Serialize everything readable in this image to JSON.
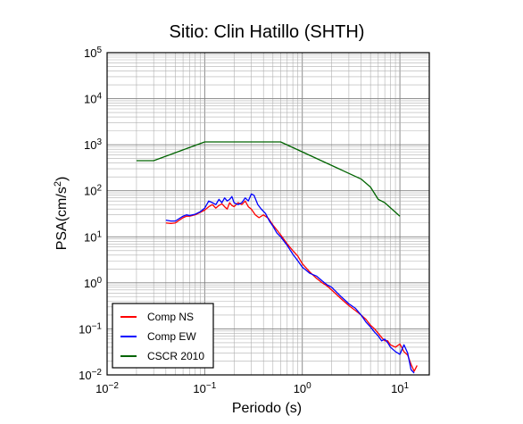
{
  "chart_data": {
    "type": "line",
    "title": "Sitio: Clin Hatillo (SHTH)",
    "xlabel": "Periodo (s)",
    "ylabel_main": "PSA(cm/s",
    "ylabel_sup": "2",
    "ylabel_tail": ")",
    "x_scale": "log",
    "y_scale": "log",
    "xlim": [
      0.01,
      20
    ],
    "ylim": [
      0.01,
      100000
    ],
    "grid": true,
    "legend_position": "bottom-left",
    "x_ticks": [
      {
        "base": "10",
        "exp": "−2",
        "value": 0.01
      },
      {
        "base": "10",
        "exp": "−1",
        "value": 0.1
      },
      {
        "base": "10",
        "exp": "0",
        "value": 1
      },
      {
        "base": "10",
        "exp": "1",
        "value": 10
      }
    ],
    "y_ticks": [
      {
        "base": "10",
        "exp": "−2",
        "value": 0.01
      },
      {
        "base": "10",
        "exp": "−1",
        "value": 0.1
      },
      {
        "base": "10",
        "exp": "0",
        "value": 1
      },
      {
        "base": "10",
        "exp": "1",
        "value": 10
      },
      {
        "base": "10",
        "exp": "2",
        "value": 100
      },
      {
        "base": "10",
        "exp": "3",
        "value": 1000
      },
      {
        "base": "10",
        "exp": "4",
        "value": 10000
      },
      {
        "base": "10",
        "exp": "5",
        "value": 100000
      }
    ],
    "series": [
      {
        "name": "Comp NS",
        "color": "#ff0000",
        "x": [
          0.04,
          0.045,
          0.05,
          0.055,
          0.06,
          0.065,
          0.07,
          0.08,
          0.09,
          0.1,
          0.11,
          0.12,
          0.13,
          0.14,
          0.15,
          0.16,
          0.17,
          0.18,
          0.19,
          0.2,
          0.22,
          0.24,
          0.26,
          0.28,
          0.3,
          0.33,
          0.36,
          0.4,
          0.45,
          0.5,
          0.55,
          0.6,
          0.7,
          0.8,
          0.9,
          1.0,
          1.2,
          1.4,
          1.6,
          1.8,
          2.0,
          2.5,
          3.0,
          3.5,
          4.0,
          4.5,
          5.0,
          5.5,
          6.0,
          6.5,
          7.0,
          7.5,
          8.0,
          9.0,
          10.0,
          11.0,
          12.0,
          13.0,
          14.0,
          15.0
        ],
        "y": [
          20,
          19.5,
          20,
          23,
          26,
          28,
          28,
          30,
          34,
          38,
          45,
          50,
          42,
          48,
          52,
          45,
          40,
          55,
          48,
          45,
          55,
          50,
          60,
          45,
          40,
          30,
          26,
          30,
          25,
          18,
          14,
          11,
          7,
          5,
          3.8,
          2.6,
          1.7,
          1.25,
          1.0,
          0.85,
          0.7,
          0.45,
          0.32,
          0.25,
          0.2,
          0.16,
          0.12,
          0.1,
          0.08,
          0.065,
          0.055,
          0.055,
          0.045,
          0.04,
          0.047,
          0.032,
          0.027,
          0.017,
          0.012,
          0.016
        ]
      },
      {
        "name": "Comp EW",
        "color": "#0000ff",
        "x": [
          0.04,
          0.045,
          0.05,
          0.055,
          0.06,
          0.065,
          0.07,
          0.08,
          0.09,
          0.1,
          0.11,
          0.12,
          0.13,
          0.14,
          0.15,
          0.16,
          0.17,
          0.18,
          0.19,
          0.2,
          0.22,
          0.24,
          0.26,
          0.28,
          0.3,
          0.32,
          0.35,
          0.38,
          0.42,
          0.46,
          0.5,
          0.55,
          0.6,
          0.7,
          0.8,
          0.9,
          1.0,
          1.2,
          1.4,
          1.6,
          1.8,
          2.0,
          2.5,
          3.0,
          3.5,
          4.0,
          4.5,
          5.0,
          5.5,
          6.0,
          6.5,
          7.0,
          7.5,
          8.0,
          9.0,
          10.0,
          11.0,
          12.0,
          13.0,
          14.0
        ],
        "y": [
          23,
          22,
          22,
          25,
          28,
          30,
          29,
          31,
          35,
          42,
          60,
          55,
          50,
          65,
          55,
          70,
          60,
          65,
          75,
          55,
          50,
          55,
          70,
          60,
          85,
          80,
          50,
          40,
          32,
          22,
          17,
          12,
          10,
          6.5,
          4.2,
          3.0,
          2.2,
          1.6,
          1.4,
          1.1,
          0.9,
          0.8,
          0.5,
          0.35,
          0.28,
          0.2,
          0.14,
          0.11,
          0.085,
          0.07,
          0.055,
          0.06,
          0.05,
          0.04,
          0.032,
          0.028,
          0.045,
          0.03,
          0.013,
          0.011
        ]
      },
      {
        "name": "CSCR 2010",
        "color": "#006400",
        "x": [
          0.02,
          0.03,
          0.1,
          0.6,
          4.0,
          5.0,
          6.0,
          7.0,
          10.0
        ],
        "y": [
          450,
          450,
          1150,
          1150,
          180,
          120,
          65,
          55,
          28
        ]
      }
    ]
  }
}
